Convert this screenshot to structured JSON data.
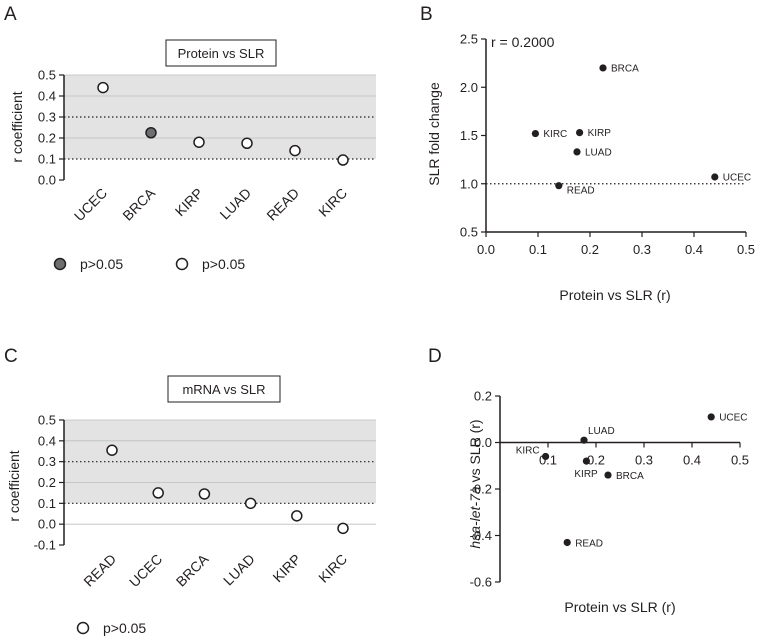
{
  "colors": {
    "shade": "#e3e3e4",
    "ink": "#231f20",
    "filled": "#6d6e70",
    "grid": "#bcbec0"
  },
  "panels": {
    "A": {
      "letter": "A",
      "title": "Protein vs SLR",
      "ylabel": "r coefficient",
      "legend": [
        {
          "marker": "filled",
          "label": "p>0.05"
        },
        {
          "marker": "open",
          "label": "p>0.05"
        }
      ]
    },
    "B": {
      "letter": "B",
      "r_text": "r = 0.2000",
      "xlabel": "Protein vs SLR (r)",
      "ylabel": "SLR fold change"
    },
    "C": {
      "letter": "C",
      "title": "mRNA vs SLR",
      "ylabel": "r coefficient",
      "legend": [
        {
          "marker": "open",
          "label": "p>0.05"
        }
      ]
    },
    "D": {
      "letter": "D",
      "xlabel": "Protein vs SLR (r)",
      "ylabel_italic": "hsa-let-7a",
      "ylabel_rest": " vs SLR (r)"
    }
  },
  "chart_data": [
    {
      "panel": "A",
      "type": "scatter",
      "title": "Protein vs SLR",
      "ylabel": "r coefficient",
      "categories": [
        "UCEC",
        "BRCA",
        "KIRP",
        "LUAD",
        "READ",
        "KIRC"
      ],
      "values": [
        0.44,
        0.225,
        0.18,
        0.175,
        0.14,
        0.095
      ],
      "filled": [
        false,
        true,
        false,
        false,
        false,
        false
      ],
      "ylim": [
        0,
        0.5
      ],
      "yticks": [
        "0.0",
        "0.1",
        "0.2",
        "0.3",
        "0.4",
        "0.5"
      ],
      "shaded_band": [
        0.1,
        0.5
      ],
      "dotted_lines": [
        0.1,
        0.3
      ],
      "grid": true
    },
    {
      "panel": "B",
      "type": "scatter",
      "xlabel": "Protein vs SLR (r)",
      "ylabel": "SLR fold change",
      "xlim": [
        0,
        0.5
      ],
      "ylim": [
        0.5,
        2.5
      ],
      "xticks": [
        "0.0",
        "0.1",
        "0.2",
        "0.3",
        "0.4",
        "0.5"
      ],
      "yticks": [
        "0.5",
        "1.0",
        "1.5",
        "2.0",
        "2.5"
      ],
      "dotted_line_y": 1.0,
      "points": [
        {
          "label": "BRCA",
          "x": 0.225,
          "y": 2.2
        },
        {
          "label": "KIRC",
          "x": 0.095,
          "y": 1.52
        },
        {
          "label": "KIRP",
          "x": 0.18,
          "y": 1.53
        },
        {
          "label": "LUAD",
          "x": 0.175,
          "y": 1.33
        },
        {
          "label": "UCEC",
          "x": 0.44,
          "y": 1.07
        },
        {
          "label": "READ",
          "x": 0.14,
          "y": 0.98
        }
      ]
    },
    {
      "panel": "C",
      "type": "scatter",
      "title": "mRNA vs SLR",
      "ylabel": "r coefficient",
      "categories": [
        "READ",
        "UCEC",
        "BRCA",
        "LUAD",
        "KIRP",
        "KIRC"
      ],
      "values": [
        0.355,
        0.15,
        0.145,
        0.1,
        0.04,
        -0.02
      ],
      "ylim": [
        -0.1,
        0.5
      ],
      "yticks": [
        "-0.1",
        "0.0",
        "0.1",
        "0.2",
        "0.3",
        "0.4",
        "0.5"
      ],
      "shaded_band": [
        0.1,
        0.5
      ],
      "dotted_lines": [
        0.1,
        0.3
      ],
      "grid": true
    },
    {
      "panel": "D",
      "type": "scatter",
      "xlabel": "Protein vs SLR (r)",
      "ylabel": "hsa-let-7a vs SLR (r)",
      "xlim": [
        0,
        0.5
      ],
      "ylim": [
        -0.6,
        0.2
      ],
      "xticks": [
        "0.1",
        "0.2",
        "0.3",
        "0.4",
        "0.5"
      ],
      "yticks": [
        "0.2",
        "0.0",
        "-0.2",
        "-0.4",
        "-0.6"
      ],
      "points": [
        {
          "label": "UCEC",
          "x": 0.44,
          "y": 0.11
        },
        {
          "label": "LUAD",
          "x": 0.175,
          "y": 0.01
        },
        {
          "label": "KIRC",
          "x": 0.095,
          "y": -0.06
        },
        {
          "label": "KIRP",
          "x": 0.18,
          "y": -0.08
        },
        {
          "label": "BRCA",
          "x": 0.225,
          "y": -0.14
        },
        {
          "label": "READ",
          "x": 0.14,
          "y": -0.43
        }
      ]
    }
  ]
}
